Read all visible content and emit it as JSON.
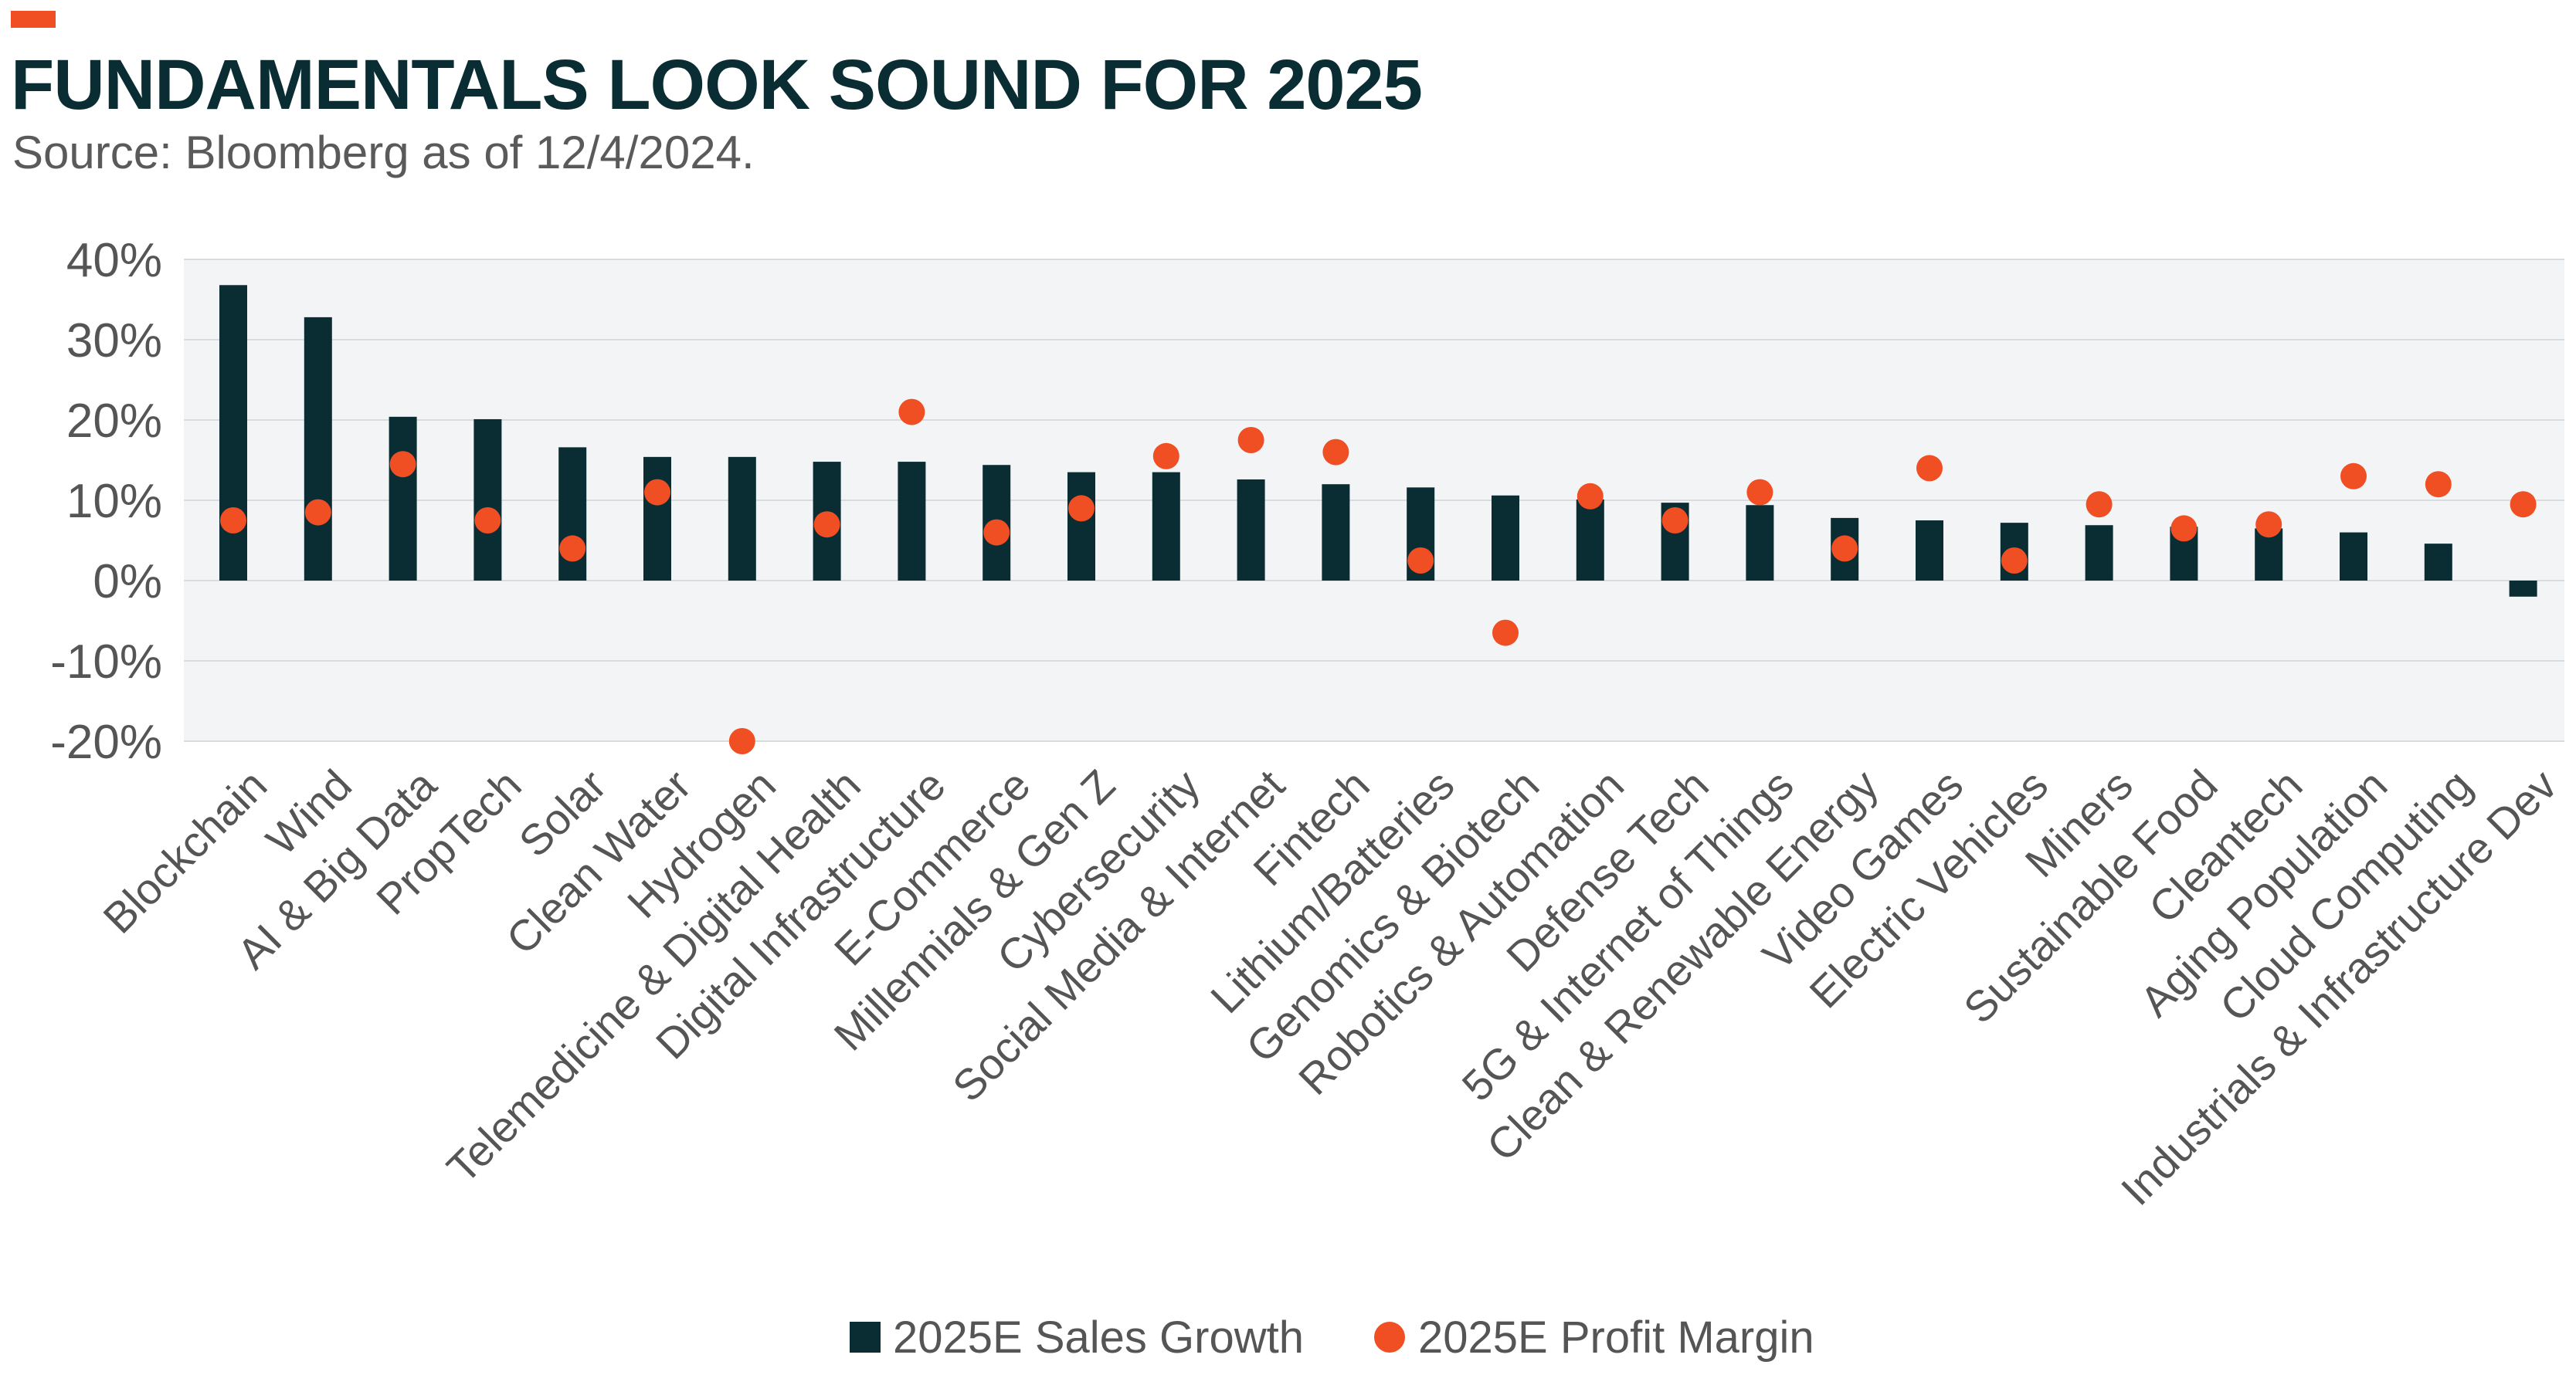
{
  "header": {
    "title": "FUNDAMENTALS LOOK SOUND FOR 2025",
    "subtitle": "Source: Bloomberg as of 12/4/2024."
  },
  "colors": {
    "accent": "#f04e23",
    "bar": "#0a2d34",
    "dot": "#f04e23",
    "plot_background": "#f2f4f5",
    "grid": "#d8dcde",
    "tick_text": "#555555",
    "title": "#0a2d34"
  },
  "chart_data": {
    "type": "bar",
    "categories": [
      "Blockchain",
      "Wind",
      "AI & Big Data",
      "PropTech",
      "Solar",
      "Clean Water",
      "Hydrogen",
      "Telemedicine & Digital Health",
      "Digital Infrastructure",
      "E-Commerce",
      "Millennials & Gen Z",
      "Cybersecurity",
      "Social Media & Internet",
      "Fintech",
      "Lithium/Batteries",
      "Genomics & Biotech",
      "Robotics & Automation",
      "Defense Tech",
      "5G & Internet of Things",
      "Clean & Renewable Energy",
      "Video Games",
      "Electric Vehicles",
      "Miners",
      "Sustainable Food",
      "Cleantech",
      "Aging Population",
      "Cloud Computing",
      "Industrials & Infrastructure Dev"
    ],
    "series": [
      {
        "name": "2025E Sales Growth",
        "render": "bar",
        "values": [
          36.8,
          32.8,
          20.4,
          20.1,
          16.6,
          15.4,
          15.4,
          14.8,
          14.8,
          14.4,
          13.5,
          13.5,
          12.6,
          12.0,
          11.6,
          10.6,
          10.1,
          9.7,
          9.4,
          7.8,
          7.5,
          7.2,
          6.9,
          6.7,
          6.5,
          6.0,
          4.6,
          -2.0
        ]
      },
      {
        "name": "2025E Profit Margin",
        "render": "dot",
        "values": [
          7.5,
          8.5,
          14.5,
          7.5,
          4.0,
          11.0,
          -20.0,
          7.0,
          21.0,
          6.0,
          9.0,
          15.5,
          17.5,
          16.0,
          2.5,
          -6.5,
          10.5,
          7.5,
          11.0,
          4.0,
          14.0,
          2.5,
          9.5,
          6.5,
          7.0,
          13.0,
          12.0,
          9.5
        ]
      }
    ],
    "yticks": [
      "40%",
      "30%",
      "20%",
      "10%",
      "0%",
      "-10%",
      "-20%"
    ],
    "ytick_values": [
      40,
      30,
      20,
      10,
      0,
      -10,
      -20
    ],
    "ylim": [
      -20,
      40
    ],
    "grid": true,
    "legend_position": "bottom-center",
    "xlabel": "",
    "ylabel": ""
  }
}
